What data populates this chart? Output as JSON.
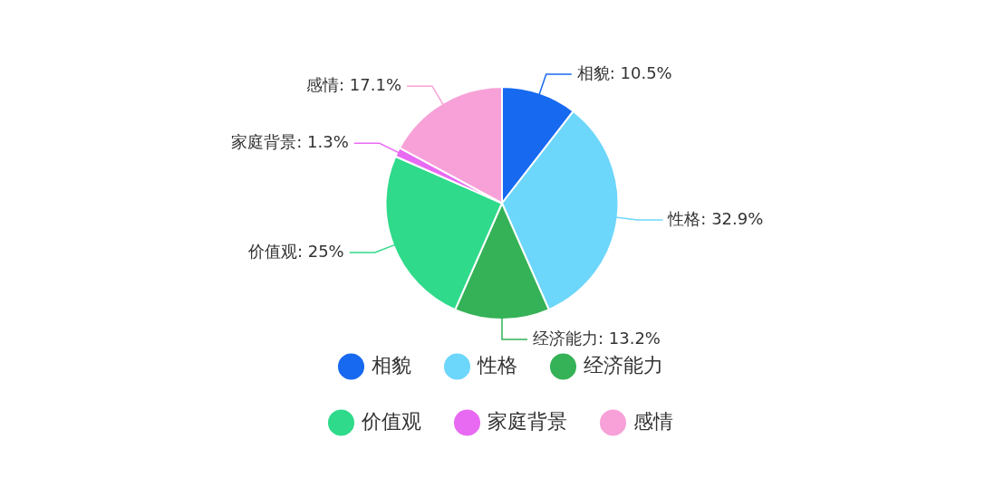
{
  "chart_data": {
    "type": "pie",
    "categories": [
      "相貌",
      "性格",
      "经济能力",
      "价值观",
      "家庭背景",
      "感情"
    ],
    "values": [
      10.5,
      32.9,
      13.2,
      25,
      1.3,
      17.1
    ],
    "colors": [
      "#1769f0",
      "#6dd6fb",
      "#35b257",
      "#2fda8b",
      "#e86af2",
      "#f7a1d8"
    ],
    "value_labels": [
      "相貌: 10.5%",
      "性格: 32.9%",
      "经济能力: 13.2%",
      "价值观: 25%",
      "家庭背景: 1.3%",
      "感情: 17.1%"
    ],
    "legend": "bottom"
  }
}
